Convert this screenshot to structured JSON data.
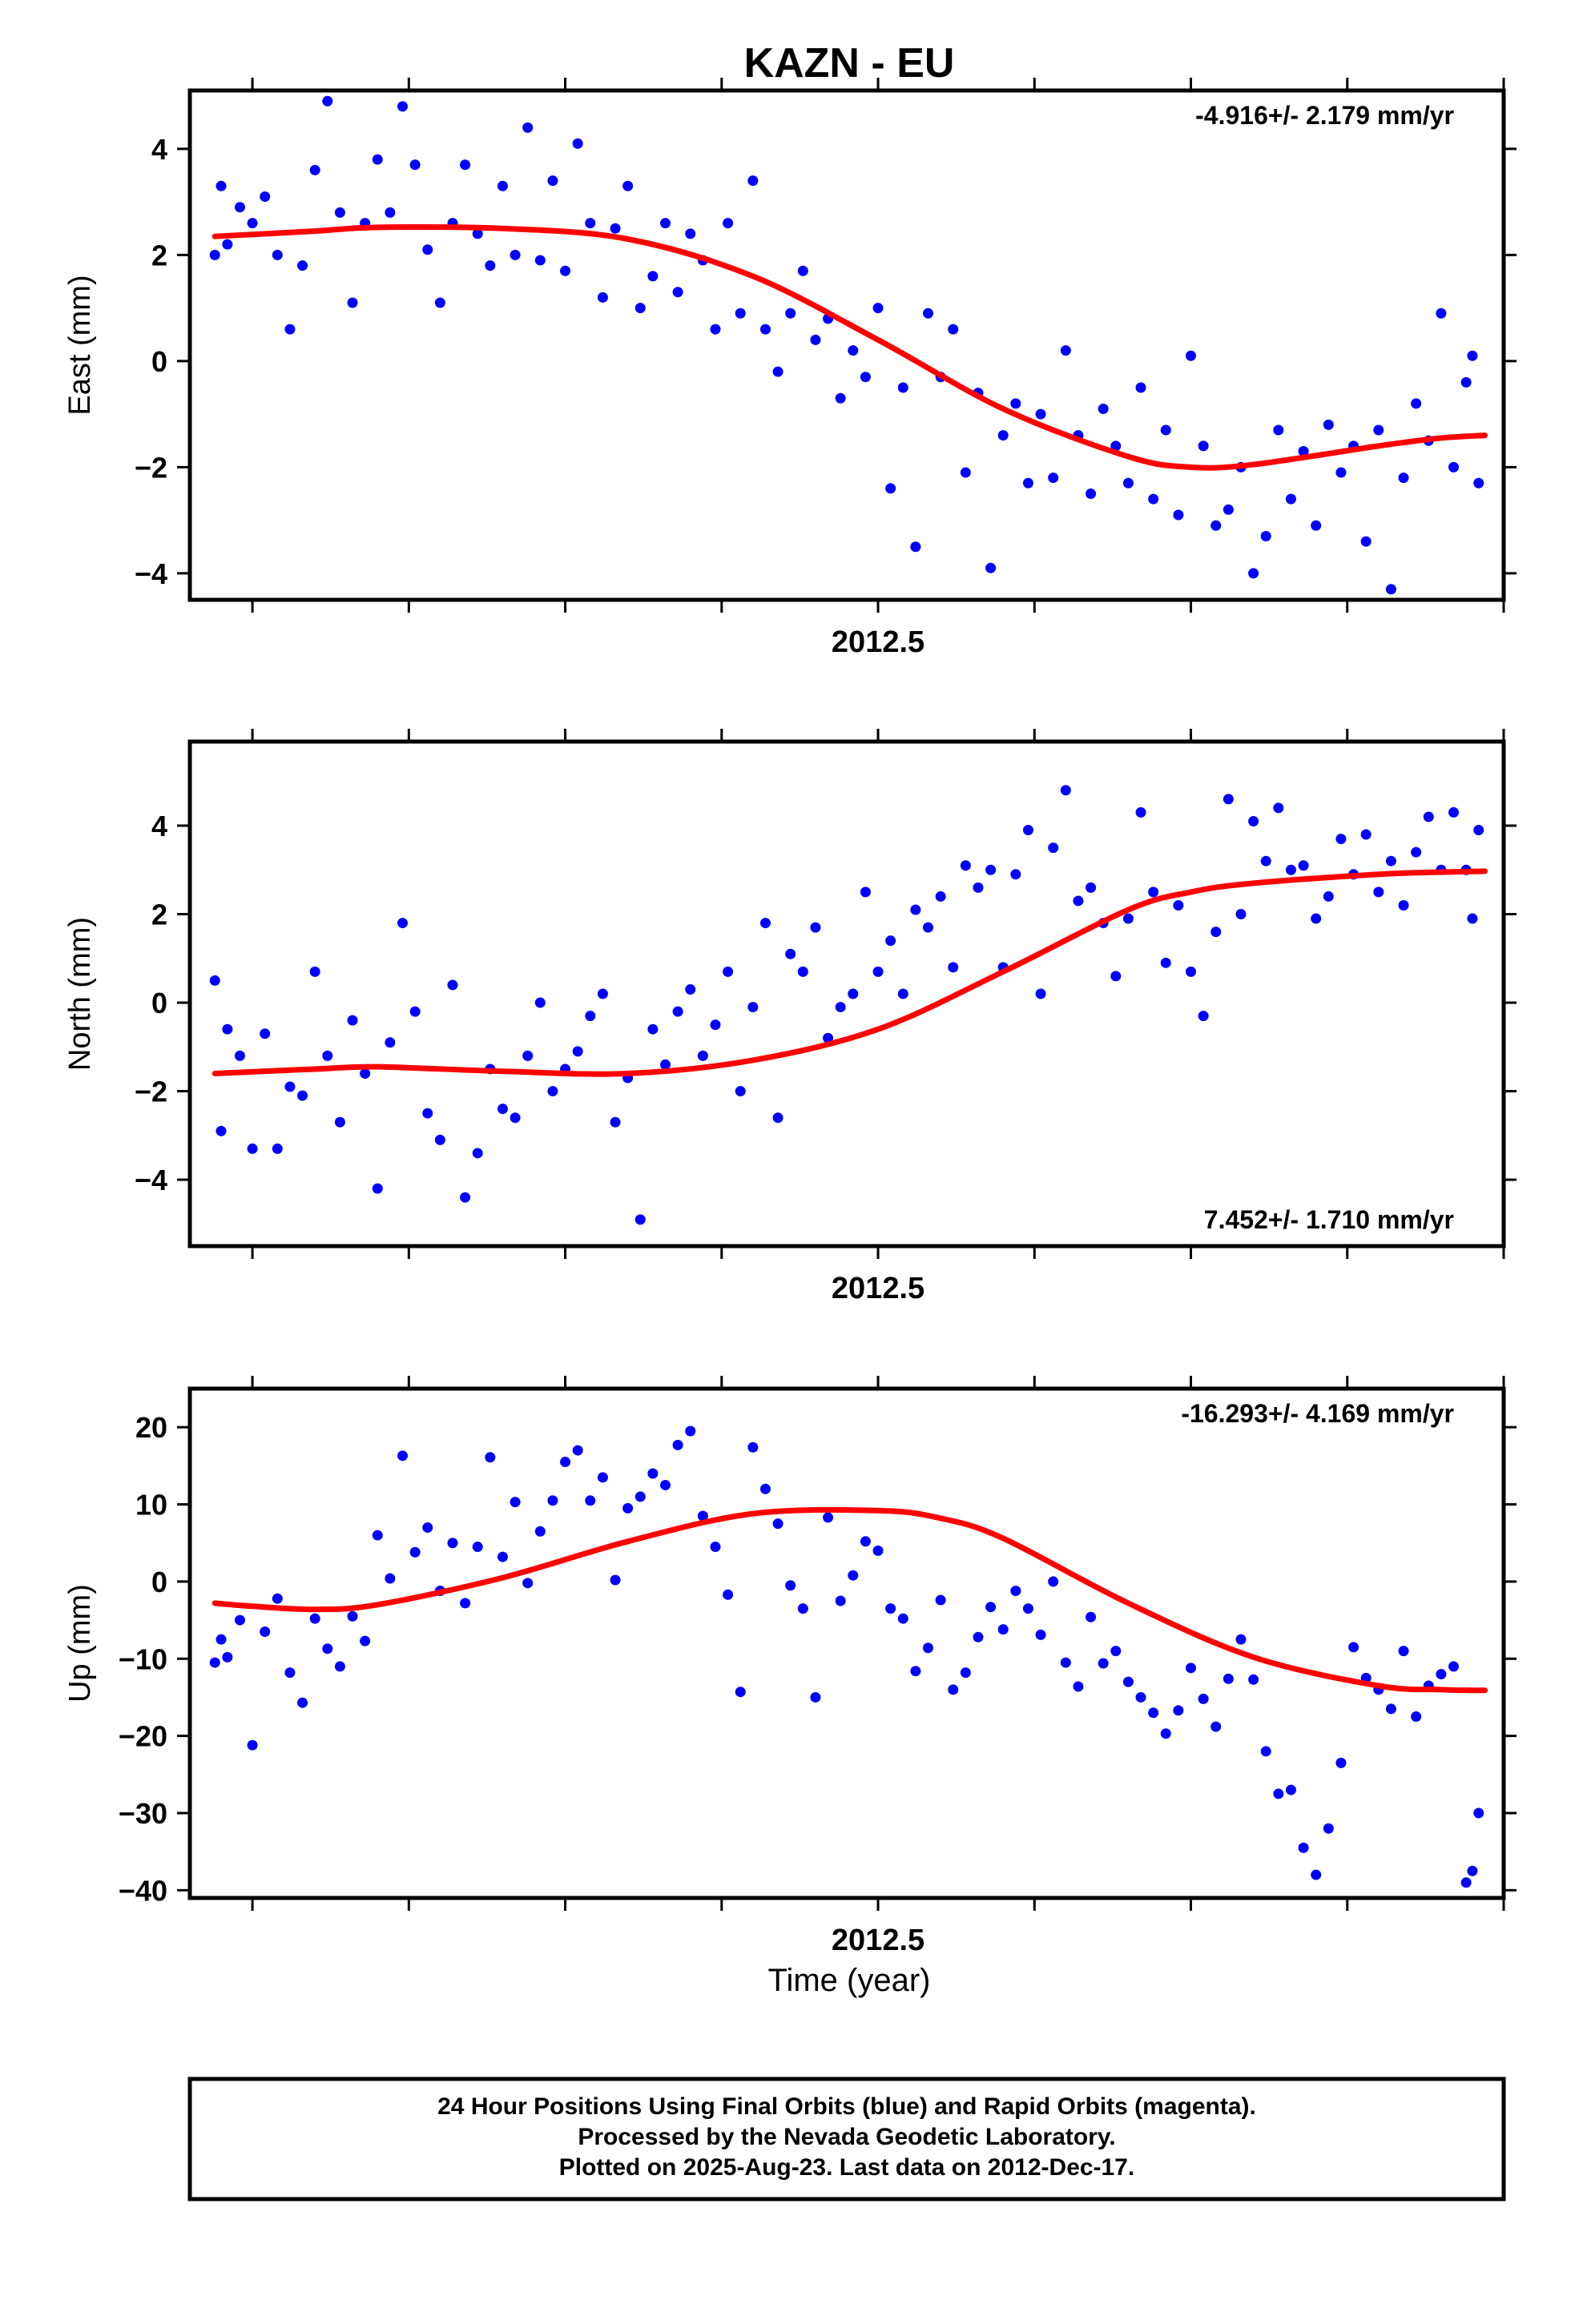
{
  "figure": {
    "title": "KAZN - EU",
    "xlabel": "Time (year)",
    "footer_lines": [
      "24 Hour Positions Using Final Orbits (blue) and Rapid Orbits (magenta).",
      "Processed by the Nevada Geodetic Laboratory.",
      "Plotted on 2025-Aug-23. Last data on 2012-Dec-17."
    ],
    "colors": {
      "points": "#0000ff",
      "fit": "#ff0000",
      "frame": "#000000"
    }
  },
  "chart_data": [
    {
      "type": "scatter",
      "ylabel": "East (mm)",
      "rate": "-4.916+/- 2.179 mm/yr",
      "rate_position": "top-right",
      "xlim": [
        2011.95,
        2013.0
      ],
      "ylim": [
        -4.5,
        5.1
      ],
      "yticks": [
        4,
        2,
        0,
        -2,
        -4
      ],
      "xtick_labels": [
        {
          "x": 2012.5,
          "label": "2012.5"
        }
      ],
      "x_minor_ticks": [
        2012.0,
        2012.125,
        2012.25,
        2012.375,
        2012.5,
        2012.625,
        2012.75,
        2012.875,
        2013.0
      ],
      "fit": {
        "x": [
          2011.97,
          2012.05,
          2012.1,
          2012.2,
          2012.3,
          2012.4,
          2012.5,
          2012.6,
          2012.7,
          2012.75,
          2012.8,
          2012.9,
          2012.95,
          2012.985
        ],
        "y": [
          2.35,
          2.45,
          2.52,
          2.5,
          2.3,
          1.6,
          0.4,
          -0.9,
          -1.8,
          -2.0,
          -1.95,
          -1.6,
          -1.45,
          -1.4
        ]
      },
      "series": [
        {
          "x": [
            2011.97,
            2011.975,
            2011.98,
            2011.99,
            2012.0,
            2012.01,
            2012.02,
            2012.03,
            2012.04,
            2012.05,
            2012.06,
            2012.07,
            2012.08,
            2012.09,
            2012.1,
            2012.11,
            2012.12,
            2012.13,
            2012.14,
            2012.15,
            2012.16,
            2012.17,
            2012.18,
            2012.19,
            2012.2,
            2012.21,
            2012.22,
            2012.23,
            2012.24,
            2012.25,
            2012.26,
            2012.27,
            2012.28,
            2012.29,
            2012.3,
            2012.31,
            2012.32,
            2012.33,
            2012.34,
            2012.35,
            2012.36,
            2012.37,
            2012.38,
            2012.39,
            2012.4,
            2012.41,
            2012.42,
            2012.43,
            2012.44,
            2012.45,
            2012.46,
            2012.47,
            2012.48,
            2012.49,
            2012.5,
            2012.51,
            2012.52,
            2012.53,
            2012.54,
            2012.55,
            2012.56,
            2012.57,
            2012.58,
            2012.59,
            2012.6,
            2012.61,
            2012.62,
            2012.63,
            2012.64,
            2012.65,
            2012.66,
            2012.67,
            2012.68,
            2012.69,
            2012.7,
            2012.71,
            2012.72,
            2012.73,
            2012.74,
            2012.75,
            2012.76,
            2012.77,
            2012.78,
            2012.79,
            2012.8,
            2012.81,
            2012.82,
            2012.83,
            2012.84,
            2012.85,
            2012.86,
            2012.87,
            2012.88,
            2012.89,
            2012.9,
            2012.91,
            2012.92,
            2012.93,
            2012.94,
            2012.95,
            2012.96,
            2012.97,
            2012.975,
            2012.98
          ],
          "y": [
            2.0,
            3.3,
            2.2,
            2.9,
            2.6,
            3.1,
            2.0,
            0.6,
            1.8,
            3.6,
            4.9,
            2.8,
            1.1,
            2.6,
            3.8,
            2.8,
            4.8,
            3.7,
            2.1,
            1.1,
            2.6,
            3.7,
            2.4,
            1.8,
            3.3,
            2.0,
            4.4,
            1.9,
            3.4,
            1.7,
            4.1,
            2.6,
            1.2,
            2.5,
            3.3,
            1.0,
            1.6,
            2.6,
            1.3,
            2.4,
            1.9,
            0.6,
            2.6,
            0.9,
            3.4,
            0.6,
            -0.2,
            0.9,
            1.7,
            0.4,
            0.8,
            -0.7,
            0.2,
            -0.3,
            1.0,
            -2.4,
            -0.5,
            -3.5,
            0.9,
            -0.3,
            0.6,
            -2.1,
            -0.6,
            -3.9,
            -1.4,
            -0.8,
            -2.3,
            -1.0,
            -2.2,
            0.2,
            -1.4,
            -2.5,
            -0.9,
            -1.6,
            -2.3,
            -0.5,
            -2.6,
            -1.3,
            -2.9,
            0.1,
            -1.6,
            -3.1,
            -2.8,
            -2.0,
            -4.0,
            -3.3,
            -1.3,
            -2.6,
            -1.7,
            -3.1,
            -1.2,
            -2.1,
            -1.6,
            -3.4,
            -1.3,
            -4.3,
            -2.2,
            -0.8,
            -1.5,
            0.9,
            -2.0,
            -0.4,
            0.1,
            -2.3
          ]
        }
      ]
    },
    {
      "type": "scatter",
      "ylabel": "North (mm)",
      "rate": "7.452+/- 1.710 mm/yr",
      "rate_position": "bottom-right",
      "xlim": [
        2011.95,
        2013.0
      ],
      "ylim": [
        -5.5,
        5.9
      ],
      "yticks": [
        4,
        2,
        0,
        -2,
        -4
      ],
      "xtick_labels": [
        {
          "x": 2012.5,
          "label": "2012.5"
        }
      ],
      "x_minor_ticks": [
        2012.0,
        2012.125,
        2012.25,
        2012.375,
        2012.5,
        2012.625,
        2012.75,
        2012.875,
        2013.0
      ],
      "fit": {
        "x": [
          2011.97,
          2012.05,
          2012.1,
          2012.2,
          2012.3,
          2012.4,
          2012.5,
          2012.6,
          2012.7,
          2012.75,
          2012.8,
          2012.9,
          2012.95,
          2012.985
        ],
        "y": [
          -1.6,
          -1.5,
          -1.45,
          -1.55,
          -1.6,
          -1.3,
          -0.6,
          0.7,
          2.1,
          2.5,
          2.7,
          2.9,
          2.95,
          2.97
        ]
      },
      "series": [
        {
          "x": [
            2011.97,
            2011.975,
            2011.98,
            2011.99,
            2012.0,
            2012.01,
            2012.02,
            2012.03,
            2012.04,
            2012.05,
            2012.06,
            2012.07,
            2012.08,
            2012.09,
            2012.1,
            2012.11,
            2012.12,
            2012.13,
            2012.14,
            2012.15,
            2012.16,
            2012.17,
            2012.18,
            2012.19,
            2012.2,
            2012.21,
            2012.22,
            2012.23,
            2012.24,
            2012.25,
            2012.26,
            2012.27,
            2012.28,
            2012.29,
            2012.3,
            2012.31,
            2012.32,
            2012.33,
            2012.34,
            2012.35,
            2012.36,
            2012.37,
            2012.38,
            2012.39,
            2012.4,
            2012.41,
            2012.42,
            2012.43,
            2012.44,
            2012.45,
            2012.46,
            2012.47,
            2012.48,
            2012.49,
            2012.5,
            2012.51,
            2012.52,
            2012.53,
            2012.54,
            2012.55,
            2012.56,
            2012.57,
            2012.58,
            2012.59,
            2012.6,
            2012.61,
            2012.62,
            2012.63,
            2012.64,
            2012.65,
            2012.66,
            2012.67,
            2012.68,
            2012.69,
            2012.7,
            2012.71,
            2012.72,
            2012.73,
            2012.74,
            2012.75,
            2012.76,
            2012.77,
            2012.78,
            2012.79,
            2012.8,
            2012.81,
            2012.82,
            2012.83,
            2012.84,
            2012.85,
            2012.86,
            2012.87,
            2012.88,
            2012.89,
            2012.9,
            2012.91,
            2012.92,
            2012.93,
            2012.94,
            2012.95,
            2012.96,
            2012.97,
            2012.975,
            2012.98
          ],
          "y": [
            0.5,
            -2.9,
            -0.6,
            -1.2,
            -3.3,
            -0.7,
            -3.3,
            -1.9,
            -2.1,
            0.7,
            -1.2,
            -2.7,
            -0.4,
            -1.6,
            -4.2,
            -0.9,
            1.8,
            -0.2,
            -2.5,
            -3.1,
            0.4,
            -4.4,
            -3.4,
            -1.5,
            -2.4,
            -2.6,
            -1.2,
            0.0,
            -2.0,
            -1.5,
            -1.1,
            -0.3,
            0.2,
            -2.7,
            -1.7,
            -4.9,
            -0.6,
            -1.4,
            -0.2,
            0.3,
            -1.2,
            -0.5,
            0.7,
            -2.0,
            -0.1,
            1.8,
            -2.6,
            1.1,
            0.7,
            1.7,
            -0.8,
            -0.1,
            0.2,
            2.5,
            0.7,
            1.4,
            0.2,
            2.1,
            1.7,
            2.4,
            0.8,
            3.1,
            2.6,
            3.0,
            0.8,
            2.9,
            3.9,
            0.2,
            3.5,
            4.8,
            2.3,
            2.6,
            1.8,
            0.6,
            1.9,
            4.3,
            2.5,
            0.9,
            2.2,
            0.7,
            -0.3,
            1.6,
            4.6,
            2.0,
            4.1,
            3.2,
            4.4,
            3.0,
            3.1,
            1.9,
            2.4,
            3.7,
            2.9,
            3.8,
            2.5,
            3.2,
            2.2,
            3.4,
            4.2,
            3.0,
            4.3,
            3.0,
            1.9,
            3.9
          ]
        }
      ]
    },
    {
      "type": "scatter",
      "ylabel": "Up (mm)",
      "rate": "-16.293+/- 4.169 mm/yr",
      "rate_position": "top-right",
      "xlim": [
        2011.95,
        2013.0
      ],
      "ylim": [
        -41,
        25
      ],
      "yticks": [
        20,
        10,
        0,
        -10,
        -20,
        -30,
        -40
      ],
      "xtick_labels": [
        {
          "x": 2012.5,
          "label": "2012.5"
        }
      ],
      "x_minor_ticks": [
        2012.0,
        2012.125,
        2012.25,
        2012.375,
        2012.5,
        2012.625,
        2012.75,
        2012.875,
        2013.0
      ],
      "fit": {
        "x": [
          2011.97,
          2012.0,
          2012.05,
          2012.1,
          2012.2,
          2012.3,
          2012.4,
          2012.5,
          2012.55,
          2012.6,
          2012.7,
          2012.8,
          2012.9,
          2012.95,
          2012.985
        ],
        "y": [
          -2.8,
          -3.2,
          -3.6,
          -3.0,
          0.5,
          5.2,
          8.8,
          9.2,
          8.2,
          5.6,
          -2.8,
          -9.8,
          -13.5,
          -14.0,
          -14.1
        ]
      },
      "series": [
        {
          "x": [
            2011.97,
            2011.975,
            2011.98,
            2011.99,
            2012.0,
            2012.01,
            2012.02,
            2012.03,
            2012.04,
            2012.05,
            2012.06,
            2012.07,
            2012.08,
            2012.09,
            2012.1,
            2012.11,
            2012.12,
            2012.13,
            2012.14,
            2012.15,
            2012.16,
            2012.17,
            2012.18,
            2012.19,
            2012.2,
            2012.21,
            2012.22,
            2012.23,
            2012.24,
            2012.25,
            2012.26,
            2012.27,
            2012.28,
            2012.29,
            2012.3,
            2012.31,
            2012.32,
            2012.33,
            2012.34,
            2012.35,
            2012.36,
            2012.37,
            2012.38,
            2012.39,
            2012.4,
            2012.41,
            2012.42,
            2012.43,
            2012.44,
            2012.45,
            2012.46,
            2012.47,
            2012.48,
            2012.49,
            2012.5,
            2012.51,
            2012.52,
            2012.53,
            2012.54,
            2012.55,
            2012.56,
            2012.57,
            2012.58,
            2012.59,
            2012.6,
            2012.61,
            2012.62,
            2012.63,
            2012.64,
            2012.65,
            2012.66,
            2012.67,
            2012.68,
            2012.69,
            2012.7,
            2012.71,
            2012.72,
            2012.73,
            2012.74,
            2012.75,
            2012.76,
            2012.77,
            2012.78,
            2012.79,
            2012.8,
            2012.81,
            2012.82,
            2012.83,
            2012.84,
            2012.85,
            2012.86,
            2012.87,
            2012.88,
            2012.89,
            2012.9,
            2012.91,
            2012.92,
            2012.93,
            2012.94,
            2012.95,
            2012.96,
            2012.97,
            2012.975,
            2012.98
          ],
          "y": [
            -10.5,
            -7.5,
            -9.8,
            -5.0,
            -21.2,
            -6.5,
            -2.2,
            -11.8,
            -15.7,
            -4.8,
            -8.7,
            -11.0,
            -4.5,
            -7.7,
            6.0,
            0.4,
            16.3,
            3.8,
            7.0,
            -1.2,
            5.0,
            -2.8,
            4.5,
            16.1,
            3.2,
            10.3,
            -0.2,
            6.5,
            10.5,
            15.5,
            17.0,
            10.5,
            13.5,
            0.2,
            9.5,
            11.0,
            14.0,
            12.5,
            17.7,
            19.5,
            8.5,
            4.5,
            -1.7,
            -14.3,
            17.4,
            12.0,
            7.5,
            -0.5,
            -3.5,
            -15.0,
            8.3,
            -2.5,
            0.8,
            5.2,
            4.0,
            -3.5,
            -4.8,
            -11.6,
            -8.6,
            -2.4,
            -14.0,
            -11.8,
            -7.2,
            -3.3,
            -6.2,
            -1.2,
            -3.5,
            -6.9,
            0.0,
            -10.5,
            -13.6,
            -4.6,
            -10.6,
            -9.0,
            -13.0,
            -15.0,
            -17.0,
            -19.7,
            -16.7,
            -11.2,
            -15.2,
            -18.8,
            -12.6,
            -7.5,
            -12.7,
            -22.0,
            -27.5,
            -27.0,
            -34.5,
            -38.0,
            -32.0,
            -23.5,
            -8.5,
            -12.5,
            -14.0,
            -16.5,
            -9.0,
            -17.5,
            -13.5,
            -12.0,
            -11.0,
            -39.0,
            -37.5,
            -30.0
          ]
        }
      ]
    }
  ]
}
